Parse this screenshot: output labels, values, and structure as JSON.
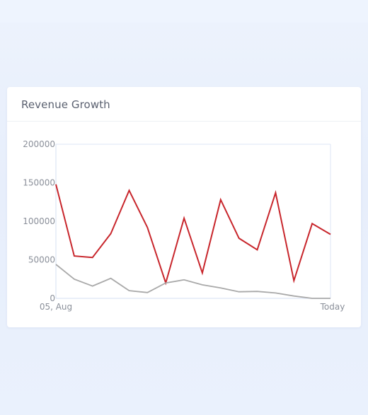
{
  "card": {
    "title": "Revenue Growth"
  },
  "colors": {
    "series_red": "#c8262c",
    "series_gray": "#a9a9a9",
    "axis": "#dde5f5"
  },
  "chart_data": {
    "type": "line",
    "title": "Revenue Growth",
    "xlabel": "",
    "ylabel": "",
    "ylim": [
      0,
      200000
    ],
    "yticks": [
      0,
      50000,
      100000,
      150000,
      200000
    ],
    "ytick_labels": [
      "0",
      "50000",
      "100000",
      "150000",
      "200000"
    ],
    "xtick_labels": [
      "05, Aug",
      "Today"
    ],
    "grid": false,
    "legend": "none",
    "series": [
      {
        "values": [
          148000,
          55000,
          53000,
          84000,
          140000,
          92000,
          20000,
          104000,
          33000,
          128000,
          78000,
          63000,
          137000,
          23000,
          97000,
          83000
        ]
      },
      {
        "values": [
          44000,
          25000,
          16000,
          26000,
          10000,
          7500,
          20000,
          24000,
          17500,
          13500,
          8500,
          9000,
          7000,
          3000,
          0,
          0
        ]
      }
    ]
  }
}
